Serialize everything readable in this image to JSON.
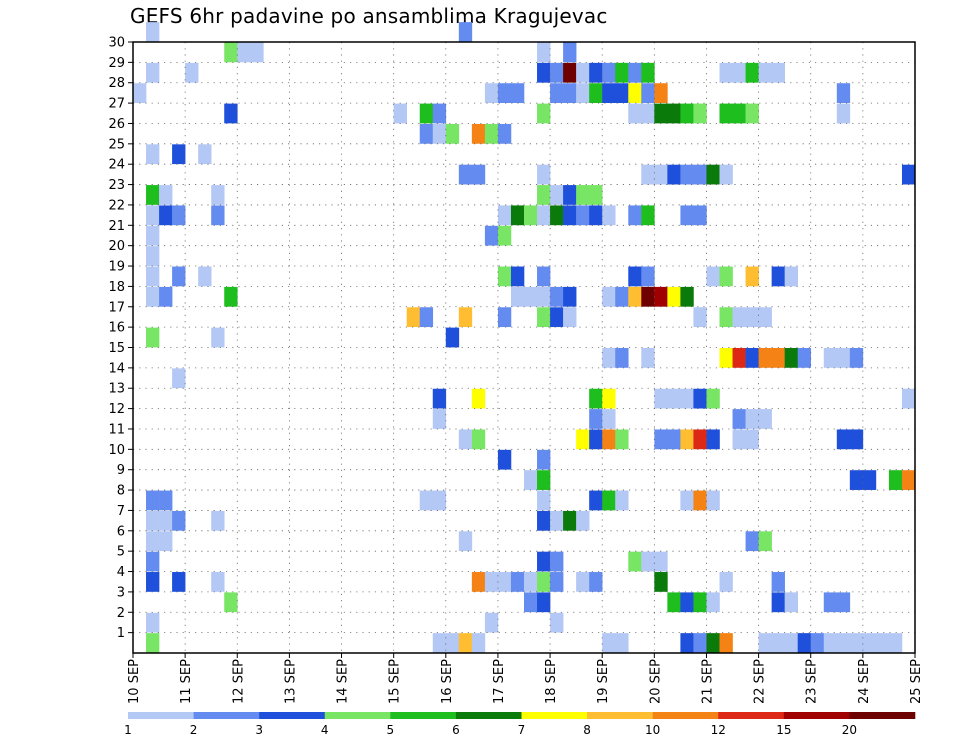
{
  "chart_data": {
    "type": "heatmap",
    "title": "GEFS 6hr padavine po ansamblima Kragujevac",
    "xlabel": "",
    "ylabel": "",
    "x_tick_labels": [
      "10 SEP",
      "11 SEP",
      "12 SEP",
      "13 SEP",
      "14 SEP",
      "15 SEP",
      "16 SEP",
      "17 SEP",
      "18 SEP",
      "19 SEP",
      "20 SEP",
      "21 SEP",
      "22 SEP",
      "23 SEP",
      "24 SEP",
      "25 SEP"
    ],
    "y_tick_labels": [
      "1",
      "2",
      "3",
      "4",
      "5",
      "6",
      "7",
      "8",
      "9",
      "10",
      "11",
      "12",
      "13",
      "14",
      "15",
      "16",
      "17",
      "18",
      "19",
      "20",
      "21",
      "22",
      "23",
      "24",
      "25",
      "26",
      "27",
      "28",
      "29",
      "30"
    ],
    "xlim": [
      0,
      60
    ],
    "ylim": [
      0,
      30
    ],
    "grid": true,
    "colorbar": {
      "levels": [
        1,
        2,
        3,
        4,
        5,
        6,
        7,
        8,
        10,
        12,
        15,
        20
      ],
      "level_labels": [
        "1",
        "2",
        "3",
        "4",
        "5",
        "6",
        "7",
        "8",
        "10",
        "12",
        "15",
        "20"
      ],
      "colors": [
        "#b4c8f5",
        "#648cf0",
        "#1e50dc",
        "#78e664",
        "#1ebe1e",
        "#0a7a0a",
        "#ffff00",
        "#ffbe32",
        "#f58214",
        "#dc2814",
        "#a00000",
        "#6e0000"
      ]
    },
    "cells": [
      [
        1,
        30,
        0
      ],
      [
        25,
        30,
        1
      ],
      [
        7,
        29,
        3
      ],
      [
        8,
        29,
        0
      ],
      [
        9,
        29,
        0
      ],
      [
        31,
        29,
        0
      ],
      [
        33,
        29,
        1
      ],
      [
        1,
        28,
        0
      ],
      [
        4,
        28,
        0
      ],
      [
        31,
        28,
        2
      ],
      [
        32,
        28,
        1
      ],
      [
        33,
        28,
        11
      ],
      [
        34,
        28,
        0
      ],
      [
        35,
        28,
        2
      ],
      [
        36,
        28,
        1
      ],
      [
        37,
        28,
        4
      ],
      [
        38,
        28,
        1
      ],
      [
        39,
        28,
        4
      ],
      [
        45,
        28,
        0
      ],
      [
        46,
        28,
        0
      ],
      [
        47,
        28,
        4
      ],
      [
        48,
        28,
        0
      ],
      [
        49,
        28,
        0
      ],
      [
        0,
        27,
        0
      ],
      [
        27,
        27,
        0
      ],
      [
        28,
        27,
        1
      ],
      [
        29,
        27,
        1
      ],
      [
        32,
        27,
        1
      ],
      [
        33,
        27,
        1
      ],
      [
        34,
        27,
        0
      ],
      [
        35,
        27,
        4
      ],
      [
        36,
        27,
        2
      ],
      [
        37,
        27,
        2
      ],
      [
        38,
        27,
        6
      ],
      [
        39,
        27,
        1
      ],
      [
        40,
        27,
        8
      ],
      [
        54,
        27,
        1
      ],
      [
        7,
        26,
        2
      ],
      [
        20,
        26,
        0
      ],
      [
        22,
        26,
        4
      ],
      [
        23,
        26,
        1
      ],
      [
        31,
        26,
        3
      ],
      [
        38,
        26,
        0
      ],
      [
        39,
        26,
        0
      ],
      [
        40,
        26,
        5
      ],
      [
        41,
        26,
        5
      ],
      [
        42,
        26,
        4
      ],
      [
        43,
        26,
        3
      ],
      [
        45,
        26,
        4
      ],
      [
        46,
        26,
        4
      ],
      [
        47,
        26,
        3
      ],
      [
        54,
        26,
        0
      ],
      [
        22,
        25,
        1
      ],
      [
        23,
        25,
        0
      ],
      [
        24,
        25,
        3
      ],
      [
        26,
        25,
        8
      ],
      [
        27,
        25,
        3
      ],
      [
        28,
        25,
        1
      ],
      [
        1,
        24,
        0
      ],
      [
        3,
        24,
        2
      ],
      [
        5,
        24,
        0
      ],
      [
        25,
        23,
        1
      ],
      [
        26,
        23,
        1
      ],
      [
        31,
        23,
        0
      ],
      [
        39,
        23,
        0
      ],
      [
        40,
        23,
        0
      ],
      [
        41,
        23,
        2
      ],
      [
        42,
        23,
        1
      ],
      [
        43,
        23,
        1
      ],
      [
        44,
        23,
        5
      ],
      [
        45,
        23,
        0
      ],
      [
        59,
        23,
        2
      ],
      [
        1,
        22,
        4
      ],
      [
        2,
        22,
        0
      ],
      [
        6,
        22,
        0
      ],
      [
        31,
        22,
        3
      ],
      [
        32,
        22,
        0
      ],
      [
        33,
        22,
        2
      ],
      [
        34,
        22,
        3
      ],
      [
        35,
        22,
        3
      ],
      [
        1,
        21,
        0
      ],
      [
        2,
        21,
        2
      ],
      [
        3,
        21,
        1
      ],
      [
        6,
        21,
        1
      ],
      [
        28,
        21,
        0
      ],
      [
        29,
        21,
        5
      ],
      [
        30,
        21,
        3
      ],
      [
        31,
        21,
        0
      ],
      [
        32,
        21,
        5
      ],
      [
        33,
        21,
        2
      ],
      [
        34,
        21,
        1
      ],
      [
        35,
        21,
        2
      ],
      [
        36,
        21,
        0
      ],
      [
        38,
        21,
        1
      ],
      [
        39,
        21,
        4
      ],
      [
        42,
        21,
        1
      ],
      [
        43,
        21,
        1
      ],
      [
        1,
        20,
        0
      ],
      [
        27,
        20,
        1
      ],
      [
        28,
        20,
        3
      ],
      [
        1,
        19,
        0
      ],
      [
        44,
        18,
        0
      ],
      [
        45,
        18,
        3
      ],
      [
        47,
        18,
        7
      ],
      [
        49,
        18,
        2
      ],
      [
        50,
        18,
        0
      ],
      [
        1,
        18,
        0
      ],
      [
        3,
        18,
        1
      ],
      [
        5,
        18,
        0
      ],
      [
        28,
        18,
        3
      ],
      [
        29,
        18,
        2
      ],
      [
        31,
        18,
        1
      ],
      [
        38,
        18,
        2
      ],
      [
        39,
        18,
        1
      ],
      [
        1,
        17,
        0
      ],
      [
        2,
        17,
        1
      ],
      [
        7,
        17,
        4
      ],
      [
        29,
        17,
        0
      ],
      [
        30,
        17,
        0
      ],
      [
        31,
        17,
        0
      ],
      [
        32,
        17,
        1
      ],
      [
        33,
        17,
        2
      ],
      [
        36,
        17,
        0
      ],
      [
        37,
        17,
        1
      ],
      [
        38,
        17,
        7
      ],
      [
        39,
        17,
        11
      ],
      [
        40,
        17,
        10
      ],
      [
        41,
        17,
        6
      ],
      [
        42,
        17,
        5
      ],
      [
        21,
        16,
        7
      ],
      [
        22,
        16,
        1
      ],
      [
        25,
        16,
        7
      ],
      [
        28,
        16,
        1
      ],
      [
        31,
        16,
        3
      ],
      [
        32,
        16,
        2
      ],
      [
        33,
        16,
        0
      ],
      [
        43,
        16,
        0
      ],
      [
        45,
        16,
        3
      ],
      [
        46,
        16,
        0
      ],
      [
        47,
        16,
        0
      ],
      [
        48,
        16,
        0
      ],
      [
        1,
        15,
        3
      ],
      [
        6,
        15,
        0
      ],
      [
        24,
        15,
        2
      ],
      [
        36,
        14,
        0
      ],
      [
        37,
        14,
        1
      ],
      [
        39,
        14,
        0
      ],
      [
        45,
        14,
        6
      ],
      [
        46,
        14,
        9
      ],
      [
        47,
        14,
        2
      ],
      [
        48,
        14,
        8
      ],
      [
        49,
        14,
        8
      ],
      [
        50,
        14,
        5
      ],
      [
        51,
        14,
        1
      ],
      [
        53,
        14,
        0
      ],
      [
        54,
        14,
        0
      ],
      [
        55,
        14,
        1
      ],
      [
        3,
        13,
        0
      ],
      [
        23,
        12,
        2
      ],
      [
        26,
        12,
        6
      ],
      [
        35,
        12,
        4
      ],
      [
        36,
        12,
        6
      ],
      [
        40,
        12,
        0
      ],
      [
        41,
        12,
        0
      ],
      [
        42,
        12,
        0
      ],
      [
        43,
        12,
        2
      ],
      [
        44,
        12,
        3
      ],
      [
        59,
        12,
        0
      ],
      [
        23,
        11,
        0
      ],
      [
        35,
        11,
        1
      ],
      [
        36,
        11,
        0
      ],
      [
        46,
        11,
        1
      ],
      [
        47,
        11,
        0
      ],
      [
        48,
        11,
        0
      ],
      [
        25,
        10,
        0
      ],
      [
        26,
        10,
        3
      ],
      [
        34,
        10,
        6
      ],
      [
        35,
        10,
        2
      ],
      [
        36,
        10,
        8
      ],
      [
        37,
        10,
        3
      ],
      [
        40,
        10,
        1
      ],
      [
        41,
        10,
        1
      ],
      [
        42,
        10,
        7
      ],
      [
        43,
        10,
        9
      ],
      [
        44,
        10,
        2
      ],
      [
        46,
        10,
        0
      ],
      [
        47,
        10,
        0
      ],
      [
        54,
        10,
        2
      ],
      [
        55,
        10,
        2
      ],
      [
        28,
        9,
        2
      ],
      [
        31,
        9,
        1
      ],
      [
        30,
        8,
        0
      ],
      [
        31,
        8,
        4
      ],
      [
        55,
        8,
        2
      ],
      [
        56,
        8,
        2
      ],
      [
        58,
        8,
        4
      ],
      [
        59,
        8,
        8
      ],
      [
        1,
        7,
        1
      ],
      [
        2,
        7,
        1
      ],
      [
        22,
        7,
        0
      ],
      [
        23,
        7,
        0
      ],
      [
        31,
        7,
        0
      ],
      [
        35,
        7,
        2
      ],
      [
        36,
        7,
        4
      ],
      [
        37,
        7,
        0
      ],
      [
        42,
        7,
        0
      ],
      [
        43,
        7,
        8
      ],
      [
        44,
        7,
        0
      ],
      [
        1,
        6,
        0
      ],
      [
        2,
        6,
        0
      ],
      [
        3,
        6,
        1
      ],
      [
        6,
        6,
        0
      ],
      [
        31,
        6,
        2
      ],
      [
        32,
        6,
        0
      ],
      [
        33,
        6,
        5
      ],
      [
        34,
        6,
        0
      ],
      [
        1,
        5,
        0
      ],
      [
        2,
        5,
        0
      ],
      [
        25,
        5,
        0
      ],
      [
        47,
        5,
        1
      ],
      [
        48,
        5,
        3
      ],
      [
        1,
        4,
        1
      ],
      [
        31,
        4,
        2
      ],
      [
        32,
        4,
        1
      ],
      [
        38,
        4,
        3
      ],
      [
        39,
        4,
        0
      ],
      [
        40,
        4,
        0
      ],
      [
        1,
        3,
        2
      ],
      [
        3,
        3,
        2
      ],
      [
        6,
        3,
        0
      ],
      [
        26,
        3,
        8
      ],
      [
        27,
        3,
        0
      ],
      [
        28,
        3,
        0
      ],
      [
        29,
        3,
        1
      ],
      [
        30,
        3,
        0
      ],
      [
        31,
        3,
        3
      ],
      [
        32,
        3,
        1
      ],
      [
        34,
        3,
        0
      ],
      [
        35,
        3,
        1
      ],
      [
        40,
        3,
        5
      ],
      [
        45,
        3,
        0
      ],
      [
        49,
        3,
        1
      ],
      [
        7,
        2,
        3
      ],
      [
        30,
        2,
        1
      ],
      [
        31,
        2,
        2
      ],
      [
        41,
        2,
        4
      ],
      [
        42,
        2,
        2
      ],
      [
        43,
        2,
        4
      ],
      [
        44,
        2,
        0
      ],
      [
        49,
        2,
        2
      ],
      [
        50,
        2,
        0
      ],
      [
        53,
        2,
        1
      ],
      [
        54,
        2,
        1
      ],
      [
        1,
        1,
        0
      ],
      [
        27,
        1,
        0
      ],
      [
        32,
        1,
        0
      ],
      [
        1,
        0,
        3
      ],
      [
        23,
        0,
        0
      ],
      [
        24,
        0,
        0
      ],
      [
        25,
        0,
        7
      ],
      [
        26,
        0,
        0
      ],
      [
        36,
        0,
        0
      ],
      [
        37,
        0,
        0
      ],
      [
        42,
        0,
        2
      ],
      [
        43,
        0,
        1
      ],
      [
        44,
        0,
        5
      ],
      [
        45,
        0,
        8
      ],
      [
        48,
        0,
        0
      ],
      [
        49,
        0,
        0
      ],
      [
        50,
        0,
        0
      ],
      [
        51,
        0,
        2
      ],
      [
        52,
        0,
        1
      ],
      [
        53,
        0,
        0
      ],
      [
        54,
        0,
        0
      ],
      [
        55,
        0,
        0
      ],
      [
        56,
        0,
        0
      ],
      [
        57,
        0,
        0
      ],
      [
        58,
        0,
        0
      ]
    ]
  }
}
